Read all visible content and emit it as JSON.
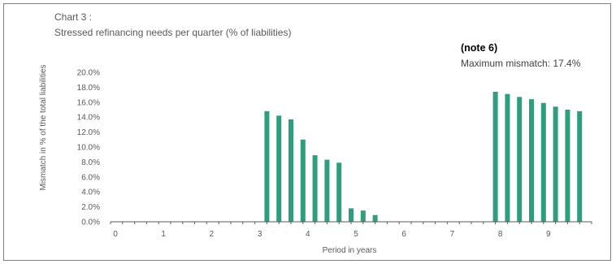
{
  "chart_data": {
    "type": "bar",
    "title_line1": "Chart 3 :",
    "title_line2": "Stressed refinancing needs per quarter  (% of liabilities)",
    "note": "(note 6)",
    "annotation": "Maximum mismatch: 17.4%",
    "xlabel": "Period in years",
    "ylabel": "Mismatch in % of the total liabilities",
    "xlim": [
      0,
      10
    ],
    "ylim": [
      0,
      20
    ],
    "x_tick_labels": [
      "0",
      "1",
      "2",
      "3",
      "4",
      "5",
      "6",
      "7",
      "8",
      "9"
    ],
    "y_tick_labels": [
      "0.0%",
      "2.0%",
      "4.0%",
      "6.0%",
      "8.0%",
      "10.0%",
      "12.0%",
      "14.0%",
      "16.0%",
      "18.0%",
      "20.0%"
    ],
    "bar_color": "#2e9e7e",
    "grid": false,
    "x": [
      3.25,
      3.5,
      3.75,
      4.0,
      4.25,
      4.5,
      4.75,
      5.0,
      5.25,
      5.5,
      8.0,
      8.25,
      8.5,
      8.75,
      9.0,
      9.25,
      9.5,
      9.75
    ],
    "values": [
      14.8,
      14.2,
      13.7,
      11.0,
      8.9,
      8.3,
      7.9,
      1.8,
      1.5,
      0.9,
      17.4,
      17.1,
      16.7,
      16.4,
      15.9,
      15.4,
      15.0,
      14.8
    ]
  }
}
